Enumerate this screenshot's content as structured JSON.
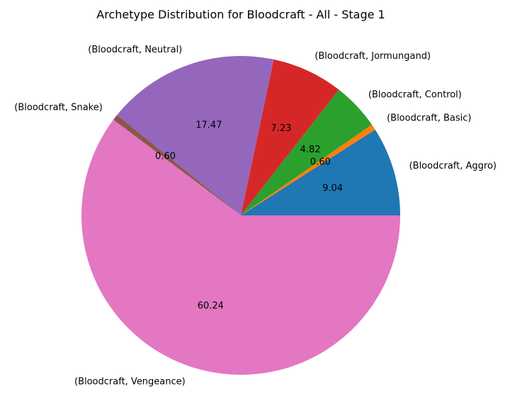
{
  "chart_data": {
    "type": "pie",
    "title": "Archetype Distribution for Bloodcraft - All - Stage 1",
    "slices": [
      {
        "label": "(Bloodcraft, Aggro)",
        "value": 9.04,
        "value_label": "9.04",
        "color": "#1f77b4"
      },
      {
        "label": "(Bloodcraft, Basic)",
        "value": 0.6,
        "value_label": "0.60",
        "color": "#ff7f0e"
      },
      {
        "label": "(Bloodcraft, Control)",
        "value": 4.82,
        "value_label": "4.82",
        "color": "#2ca02c"
      },
      {
        "label": "(Bloodcraft, Jormungand)",
        "value": 7.23,
        "value_label": "7.23",
        "color": "#d62728"
      },
      {
        "label": "(Bloodcraft, Neutral)",
        "value": 17.47,
        "value_label": "17.47",
        "color": "#9467bd"
      },
      {
        "label": "(Bloodcraft, Snake)",
        "value": 0.6,
        "value_label": "0.60",
        "color": "#8c564b"
      },
      {
        "label": "(Bloodcraft, Vengeance)",
        "value": 60.24,
        "value_label": "60.24",
        "color": "#e377c2"
      }
    ]
  }
}
